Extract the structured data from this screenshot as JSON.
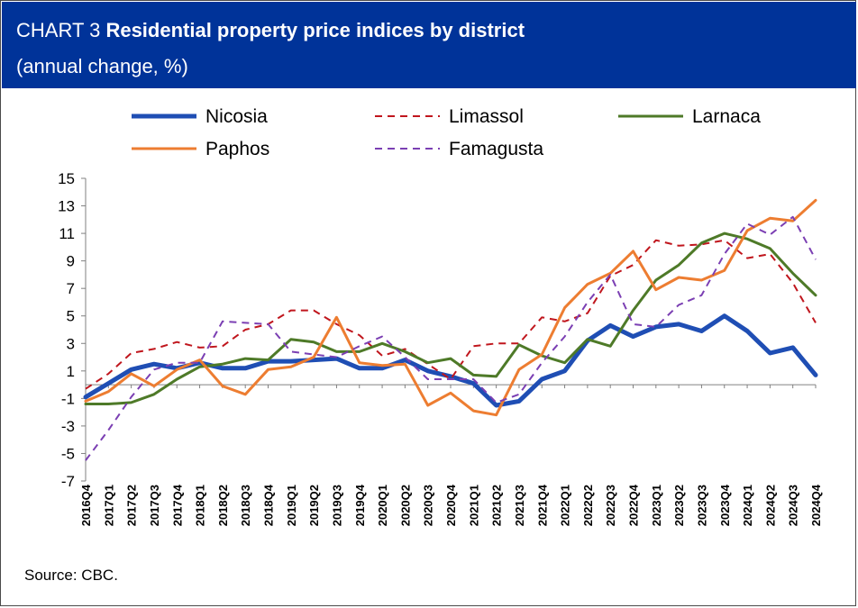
{
  "header": {
    "title_prefix": "CHART 3",
    "title": "Residential property price indices by district",
    "subtitle": "(annual change, %)"
  },
  "source": "Source: CBC.",
  "chart_data": {
    "type": "line",
    "title": "CHART 3 Residential property price indices by district",
    "subtitle": "(annual change, %)",
    "xlabel": "",
    "ylabel": "",
    "ylim": [
      -7,
      15
    ],
    "yticks": [
      15,
      13,
      11,
      9,
      7,
      5,
      3,
      1,
      -1,
      -3,
      -5,
      -7
    ],
    "grid": false,
    "legend_position": "top",
    "categories": [
      "2016Q4",
      "2017Q1",
      "2017Q2",
      "2017Q3",
      "2017Q4",
      "2018Q1",
      "2018Q2",
      "2018Q3",
      "2018Q4",
      "2019Q1",
      "2019Q2",
      "2019Q3",
      "2019Q4",
      "2020Q1",
      "2020Q2",
      "2020Q3",
      "2020Q4",
      "2021Q1",
      "2021Q2",
      "2021Q3",
      "2021Q4",
      "2022Q1",
      "2022Q2",
      "2022Q3",
      "2022Q4",
      "2023Q1",
      "2023Q2",
      "2023Q3",
      "2023Q4",
      "2024Q1",
      "2024Q2",
      "2024Q3",
      "2024Q4"
    ],
    "series": [
      {
        "name": "Nicosia",
        "color": "#1F4EB4",
        "dash": "solid",
        "width": 5,
        "values": [
          -0.9,
          0.1,
          1.1,
          1.5,
          1.2,
          1.6,
          1.2,
          1.2,
          1.7,
          1.7,
          1.8,
          1.9,
          1.2,
          1.2,
          1.8,
          1.0,
          0.6,
          0.1,
          -1.5,
          -1.2,
          0.4,
          1.0,
          3.2,
          4.3,
          3.5,
          4.2,
          4.4,
          3.9,
          5.0,
          3.9,
          2.3,
          2.7,
          0.7
        ]
      },
      {
        "name": "Limassol",
        "color": "#C0161D",
        "dash": "dashed",
        "width": 2,
        "values": [
          -0.3,
          0.8,
          2.3,
          2.6,
          3.1,
          2.7,
          2.8,
          4.0,
          4.4,
          5.4,
          5.4,
          4.4,
          3.6,
          2.1,
          2.6,
          1.5,
          0.4,
          2.8,
          3.0,
          3.0,
          4.9,
          4.6,
          5.2,
          7.9,
          8.7,
          10.5,
          10.1,
          10.2,
          10.5,
          9.2,
          9.5,
          7.4,
          4.5
        ]
      },
      {
        "name": "Larnaca",
        "color": "#4E7A28",
        "dash": "solid",
        "width": 3,
        "values": [
          -1.4,
          -1.4,
          -1.3,
          -0.7,
          0.4,
          1.3,
          1.5,
          1.9,
          1.8,
          3.3,
          3.1,
          2.4,
          2.4,
          3.0,
          2.4,
          1.6,
          1.9,
          0.7,
          0.6,
          2.9,
          2.1,
          1.6,
          3.3,
          2.8,
          5.4,
          7.6,
          8.7,
          10.3,
          11.0,
          10.6,
          9.9,
          8.1,
          6.5
        ]
      },
      {
        "name": "Paphos",
        "color": "#ED7D31",
        "dash": "solid",
        "width": 3,
        "values": [
          -1.2,
          -0.5,
          0.8,
          -0.1,
          1.1,
          1.8,
          -0.1,
          -0.7,
          1.1,
          1.3,
          2.0,
          4.9,
          1.6,
          1.4,
          1.5,
          -1.5,
          -0.6,
          -1.9,
          -2.2,
          1.1,
          2.2,
          5.6,
          7.3,
          8.1,
          9.7,
          6.9,
          7.8,
          7.6,
          8.3,
          11.2,
          12.1,
          11.9,
          13.4
        ]
      },
      {
        "name": "Famagusta",
        "color": "#7B3FB3",
        "dash": "dashed",
        "width": 2,
        "values": [
          -5.5,
          -3.3,
          -0.9,
          1.1,
          1.6,
          1.6,
          4.6,
          4.5,
          4.4,
          2.4,
          2.2,
          2.0,
          2.8,
          3.5,
          2.0,
          0.4,
          0.4,
          0.4,
          -1.3,
          -0.7,
          1.6,
          3.5,
          6.0,
          8.0,
          4.4,
          4.2,
          5.8,
          6.5,
          9.5,
          11.7,
          10.9,
          12.2,
          9.1
        ]
      }
    ]
  }
}
